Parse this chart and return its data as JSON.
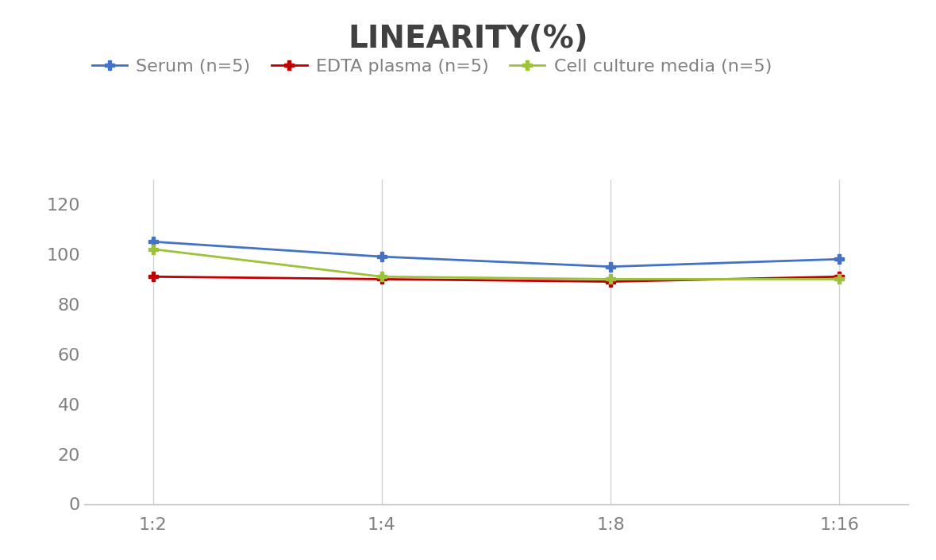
{
  "title": "LINEARITY(%)",
  "x_labels": [
    "1:2",
    "1:4",
    "1:8",
    "1:16"
  ],
  "x_positions": [
    0,
    1,
    2,
    3
  ],
  "series": [
    {
      "label": "Serum (n=5)",
      "values": [
        105,
        99,
        95,
        98
      ],
      "color": "#4472C4",
      "marker": "P",
      "linewidth": 2,
      "markersize": 9
    },
    {
      "label": "EDTA plasma (n=5)",
      "values": [
        91,
        90,
        89,
        91
      ],
      "color": "#C00000",
      "marker": "P",
      "linewidth": 2,
      "markersize": 9
    },
    {
      "label": "Cell culture media (n=5)",
      "values": [
        102,
        91,
        90,
        90
      ],
      "color": "#9DC23A",
      "marker": "P",
      "linewidth": 2,
      "markersize": 9
    }
  ],
  "ylim": [
    0,
    130
  ],
  "yticks": [
    0,
    20,
    40,
    60,
    80,
    100,
    120
  ],
  "background_color": "#FFFFFF",
  "grid_color": "#D3D3D3",
  "title_fontsize": 28,
  "title_color": "#404040",
  "tick_fontsize": 16,
  "legend_fontsize": 16,
  "tick_color": "#808080"
}
